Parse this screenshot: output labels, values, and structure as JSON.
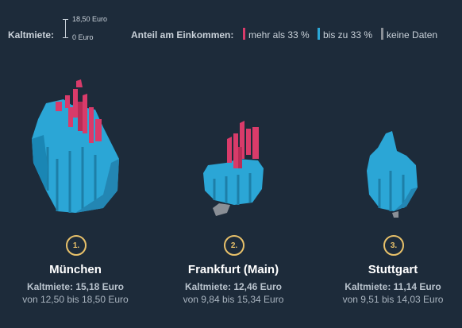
{
  "legend": {
    "rent_label": "Kaltmiete:",
    "scale_max": "18,50 Euro",
    "scale_min": "0 Euro",
    "income_label": "Anteil am Einkommen:",
    "categories": [
      {
        "label": "mehr als 33 %",
        "color": "#d93b6a"
      },
      {
        "label": "bis zu 33 %",
        "color": "#2ba6d6"
      },
      {
        "label": "keine Daten",
        "color": "#8a8f96"
      }
    ]
  },
  "cities": [
    {
      "rank": "1.",
      "name": "München",
      "rent": "Kaltmiete: 15,18 Euro",
      "range": "von 12,50 bis 18,50 Euro"
    },
    {
      "rank": "2.",
      "name": "Frankfurt (Main)",
      "rent": "Kaltmiete: 12,46 Euro",
      "range": "von 9,84 bis 15,34 Euro"
    },
    {
      "rank": "3.",
      "name": "Stuttgart",
      "rent": "Kaltmiete: 11,14 Euro",
      "range": "von 9,51 bis 14,03 Euro"
    }
  ],
  "colors": {
    "badge": "#e8c16a",
    "background": "#1d2b3a"
  }
}
